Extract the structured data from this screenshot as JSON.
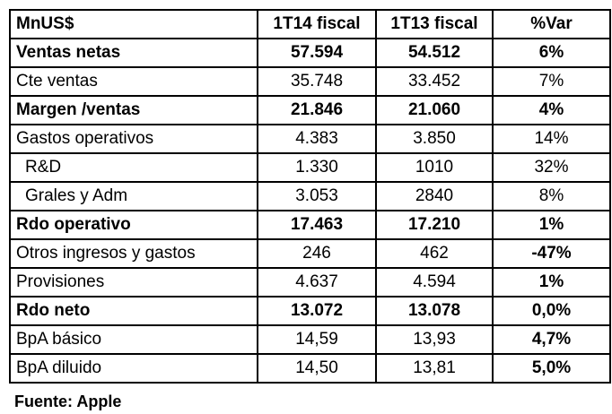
{
  "table": {
    "headers": [
      "MnUS$",
      "1T14 fiscal",
      "1T13 fiscal",
      "%Var"
    ],
    "rows": [
      {
        "cells": [
          "Ventas netas",
          "57.594",
          "54.512",
          "6%"
        ],
        "bold": [
          true,
          true,
          true,
          true
        ],
        "indent": false
      },
      {
        "cells": [
          "Cte ventas",
          "35.748",
          "33.452",
          "7%"
        ],
        "bold": [
          false,
          false,
          false,
          false
        ],
        "indent": false
      },
      {
        "cells": [
          "Margen /ventas",
          "21.846",
          "21.060",
          "4%"
        ],
        "bold": [
          true,
          true,
          true,
          true
        ],
        "indent": false
      },
      {
        "cells": [
          "Gastos operativos",
          "4.383",
          "3.850",
          "14%"
        ],
        "bold": [
          false,
          false,
          false,
          false
        ],
        "indent": false
      },
      {
        "cells": [
          "R&D",
          "1.330",
          "1010",
          "32%"
        ],
        "bold": [
          false,
          false,
          false,
          false
        ],
        "indent": true
      },
      {
        "cells": [
          "Grales y Adm",
          "3.053",
          "2840",
          "8%"
        ],
        "bold": [
          false,
          false,
          false,
          false
        ],
        "indent": true
      },
      {
        "cells": [
          "Rdo operativo",
          "17.463",
          "17.210",
          "1%"
        ],
        "bold": [
          true,
          true,
          true,
          true
        ],
        "indent": false
      },
      {
        "cells": [
          "Otros ingresos y gastos",
          "246",
          "462",
          "-47%"
        ],
        "bold": [
          false,
          false,
          false,
          true
        ],
        "indent": false
      },
      {
        "cells": [
          "Provisiones",
          "4.637",
          "4.594",
          "1%"
        ],
        "bold": [
          false,
          false,
          false,
          true
        ],
        "indent": false
      },
      {
        "cells": [
          "Rdo neto",
          "13.072",
          "13.078",
          "0,0%"
        ],
        "bold": [
          true,
          true,
          true,
          true
        ],
        "indent": false
      },
      {
        "cells": [
          "BpA básico",
          "14,59",
          "13,93",
          "4,7%"
        ],
        "bold": [
          false,
          false,
          false,
          true
        ],
        "indent": false
      },
      {
        "cells": [
          "BpA diluido",
          "14,50",
          "13,81",
          "5,0%"
        ],
        "bold": [
          false,
          false,
          false,
          true
        ],
        "indent": false
      }
    ]
  },
  "source": "Fuente: Apple"
}
